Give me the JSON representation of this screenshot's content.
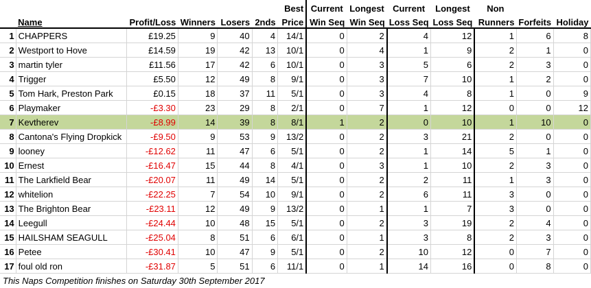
{
  "headers": {
    "name": "Name",
    "profit_loss": "Profit/Loss",
    "winners": "Winners",
    "losers": "Losers",
    "seconds": "2nds",
    "best_price_1": "Best",
    "best_price_2": "Price",
    "current_win_1": "Current",
    "current_win_2": "Win Seq",
    "longest_win_1": "Longest",
    "longest_win_2": "Win Seq",
    "current_loss_1": "Current",
    "current_loss_2": "Loss Seq",
    "longest_loss_1": "Longest",
    "longest_loss_2": "Loss Seq",
    "non_runners_1": "Non",
    "non_runners_2": "Runners",
    "forfeits": "Forfeits",
    "holiday": "Holiday"
  },
  "rows": [
    {
      "pos": "1",
      "name": "CHAPPERS",
      "pl": "£19.25",
      "neg": false,
      "w": "9",
      "l": "40",
      "s": "4",
      "bp": "14/1",
      "cw": "0",
      "lw": "2",
      "cl": "4",
      "ll": "12",
      "nr": "1",
      "f": "6",
      "h": "8"
    },
    {
      "pos": "2",
      "name": "Westport to Hove",
      "pl": "£14.59",
      "neg": false,
      "w": "19",
      "l": "42",
      "s": "13",
      "bp": "10/1",
      "cw": "0",
      "lw": "4",
      "cl": "1",
      "ll": "9",
      "nr": "2",
      "f": "1",
      "h": "0"
    },
    {
      "pos": "3",
      "name": "martin tyler",
      "pl": "£11.56",
      "neg": false,
      "w": "17",
      "l": "42",
      "s": "6",
      "bp": "10/1",
      "cw": "0",
      "lw": "3",
      "cl": "5",
      "ll": "6",
      "nr": "2",
      "f": "3",
      "h": "0"
    },
    {
      "pos": "4",
      "name": "Trigger",
      "pl": "£5.50",
      "neg": false,
      "w": "12",
      "l": "49",
      "s": "8",
      "bp": "9/1",
      "cw": "0",
      "lw": "3",
      "cl": "7",
      "ll": "10",
      "nr": "1",
      "f": "2",
      "h": "0"
    },
    {
      "pos": "5",
      "name": "Tom Hark, Preston Park",
      "pl": "£0.15",
      "neg": false,
      "w": "18",
      "l": "37",
      "s": "11",
      "bp": "5/1",
      "cw": "0",
      "lw": "3",
      "cl": "4",
      "ll": "8",
      "nr": "1",
      "f": "0",
      "h": "9"
    },
    {
      "pos": "6",
      "name": "Playmaker",
      "pl": "-£3.30",
      "neg": true,
      "w": "23",
      "l": "29",
      "s": "8",
      "bp": "2/1",
      "cw": "0",
      "lw": "7",
      "cl": "1",
      "ll": "12",
      "nr": "0",
      "f": "0",
      "h": "12"
    },
    {
      "pos": "7",
      "name": "Kevtherev",
      "pl": "-£8.99",
      "neg": true,
      "w": "14",
      "l": "39",
      "s": "8",
      "bp": "8/1",
      "cw": "1",
      "lw": "2",
      "cl": "0",
      "ll": "10",
      "nr": "1",
      "f": "10",
      "h": "0",
      "highlight": true
    },
    {
      "pos": "8",
      "name": "Cantona's Flying Dropkick",
      "pl": "-£9.50",
      "neg": true,
      "w": "9",
      "l": "53",
      "s": "9",
      "bp": "13/2",
      "cw": "0",
      "lw": "2",
      "cl": "3",
      "ll": "21",
      "nr": "2",
      "f": "0",
      "h": "0"
    },
    {
      "pos": "9",
      "name": "looney",
      "pl": "-£12.62",
      "neg": true,
      "w": "11",
      "l": "47",
      "s": "6",
      "bp": "5/1",
      "cw": "0",
      "lw": "2",
      "cl": "1",
      "ll": "14",
      "nr": "5",
      "f": "1",
      "h": "0"
    },
    {
      "pos": "10",
      "name": "Ernest",
      "pl": "-£16.47",
      "neg": true,
      "w": "15",
      "l": "44",
      "s": "8",
      "bp": "4/1",
      "cw": "0",
      "lw": "3",
      "cl": "1",
      "ll": "10",
      "nr": "2",
      "f": "3",
      "h": "0"
    },
    {
      "pos": "11",
      "name": "The Larkfield Bear",
      "pl": "-£20.07",
      "neg": true,
      "w": "11",
      "l": "49",
      "s": "14",
      "bp": "5/1",
      "cw": "0",
      "lw": "2",
      "cl": "2",
      "ll": "11",
      "nr": "1",
      "f": "3",
      "h": "0"
    },
    {
      "pos": "12",
      "name": "whitelion",
      "pl": "-£22.25",
      "neg": true,
      "w": "7",
      "l": "54",
      "s": "10",
      "bp": "9/1",
      "cw": "0",
      "lw": "2",
      "cl": "6",
      "ll": "11",
      "nr": "3",
      "f": "0",
      "h": "0"
    },
    {
      "pos": "13",
      "name": "The Brighton Bear",
      "pl": "-£23.11",
      "neg": true,
      "w": "12",
      "l": "49",
      "s": "9",
      "bp": "13/2",
      "cw": "0",
      "lw": "1",
      "cl": "1",
      "ll": "7",
      "nr": "3",
      "f": "0",
      "h": "0"
    },
    {
      "pos": "14",
      "name": "Leegull",
      "pl": "-£24.44",
      "neg": true,
      "w": "10",
      "l": "48",
      "s": "15",
      "bp": "5/1",
      "cw": "0",
      "lw": "2",
      "cl": "3",
      "ll": "19",
      "nr": "2",
      "f": "4",
      "h": "0"
    },
    {
      "pos": "15",
      "name": "HAILSHAM SEAGULL",
      "pl": "-£25.04",
      "neg": true,
      "w": "8",
      "l": "51",
      "s": "6",
      "bp": "6/1",
      "cw": "0",
      "lw": "1",
      "cl": "3",
      "ll": "8",
      "nr": "2",
      "f": "3",
      "h": "0"
    },
    {
      "pos": "16",
      "name": "Petee",
      "pl": "-£30.41",
      "neg": true,
      "w": "10",
      "l": "47",
      "s": "9",
      "bp": "5/1",
      "cw": "0",
      "lw": "2",
      "cl": "10",
      "ll": "12",
      "nr": "0",
      "f": "7",
      "h": "0"
    },
    {
      "pos": "17",
      "name": "foul old ron",
      "pl": "-£31.87",
      "neg": true,
      "w": "5",
      "l": "51",
      "s": "6",
      "bp": "11/1",
      "cw": "0",
      "lw": "1",
      "cl": "14",
      "ll": "16",
      "nr": "0",
      "f": "8",
      "h": "0"
    }
  ],
  "footer": "This Naps Competition finishes on Saturday 30th September 2017",
  "colors": {
    "highlight": "#c4d79b",
    "negative": "#e00000"
  }
}
